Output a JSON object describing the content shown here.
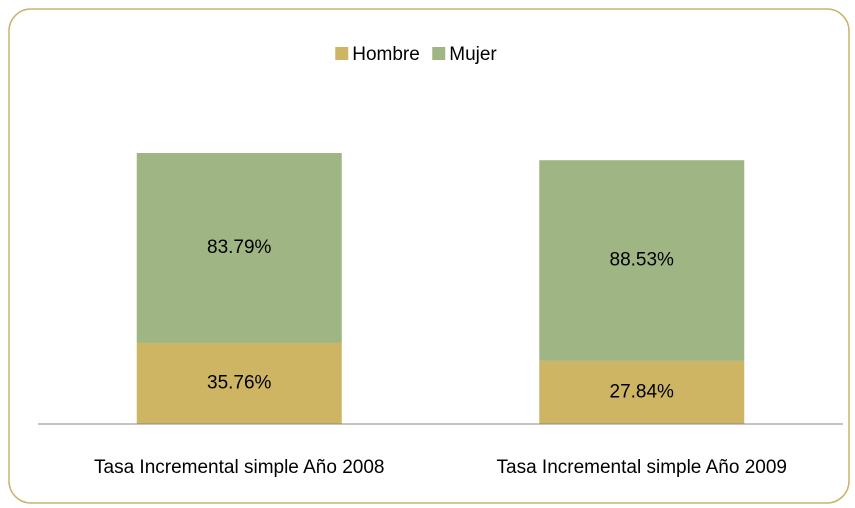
{
  "chart_data": {
    "type": "stacked-bar",
    "categories": [
      "Tasa Incremental simple Año 2008",
      "Tasa Incremental simple Año 2009"
    ],
    "series": [
      {
        "name": "Hombre",
        "color": "#cdb564",
        "values": [
          35.76,
          27.84
        ],
        "value_labels": [
          "35.76%",
          "27.84%"
        ]
      },
      {
        "name": "Mujer",
        "color": "#9fb583",
        "values": [
          83.79,
          88.53
        ],
        "value_labels": [
          "83.79%",
          "88.53%"
        ]
      }
    ],
    "ylim": [
      0,
      120
    ],
    "legend": "top"
  }
}
